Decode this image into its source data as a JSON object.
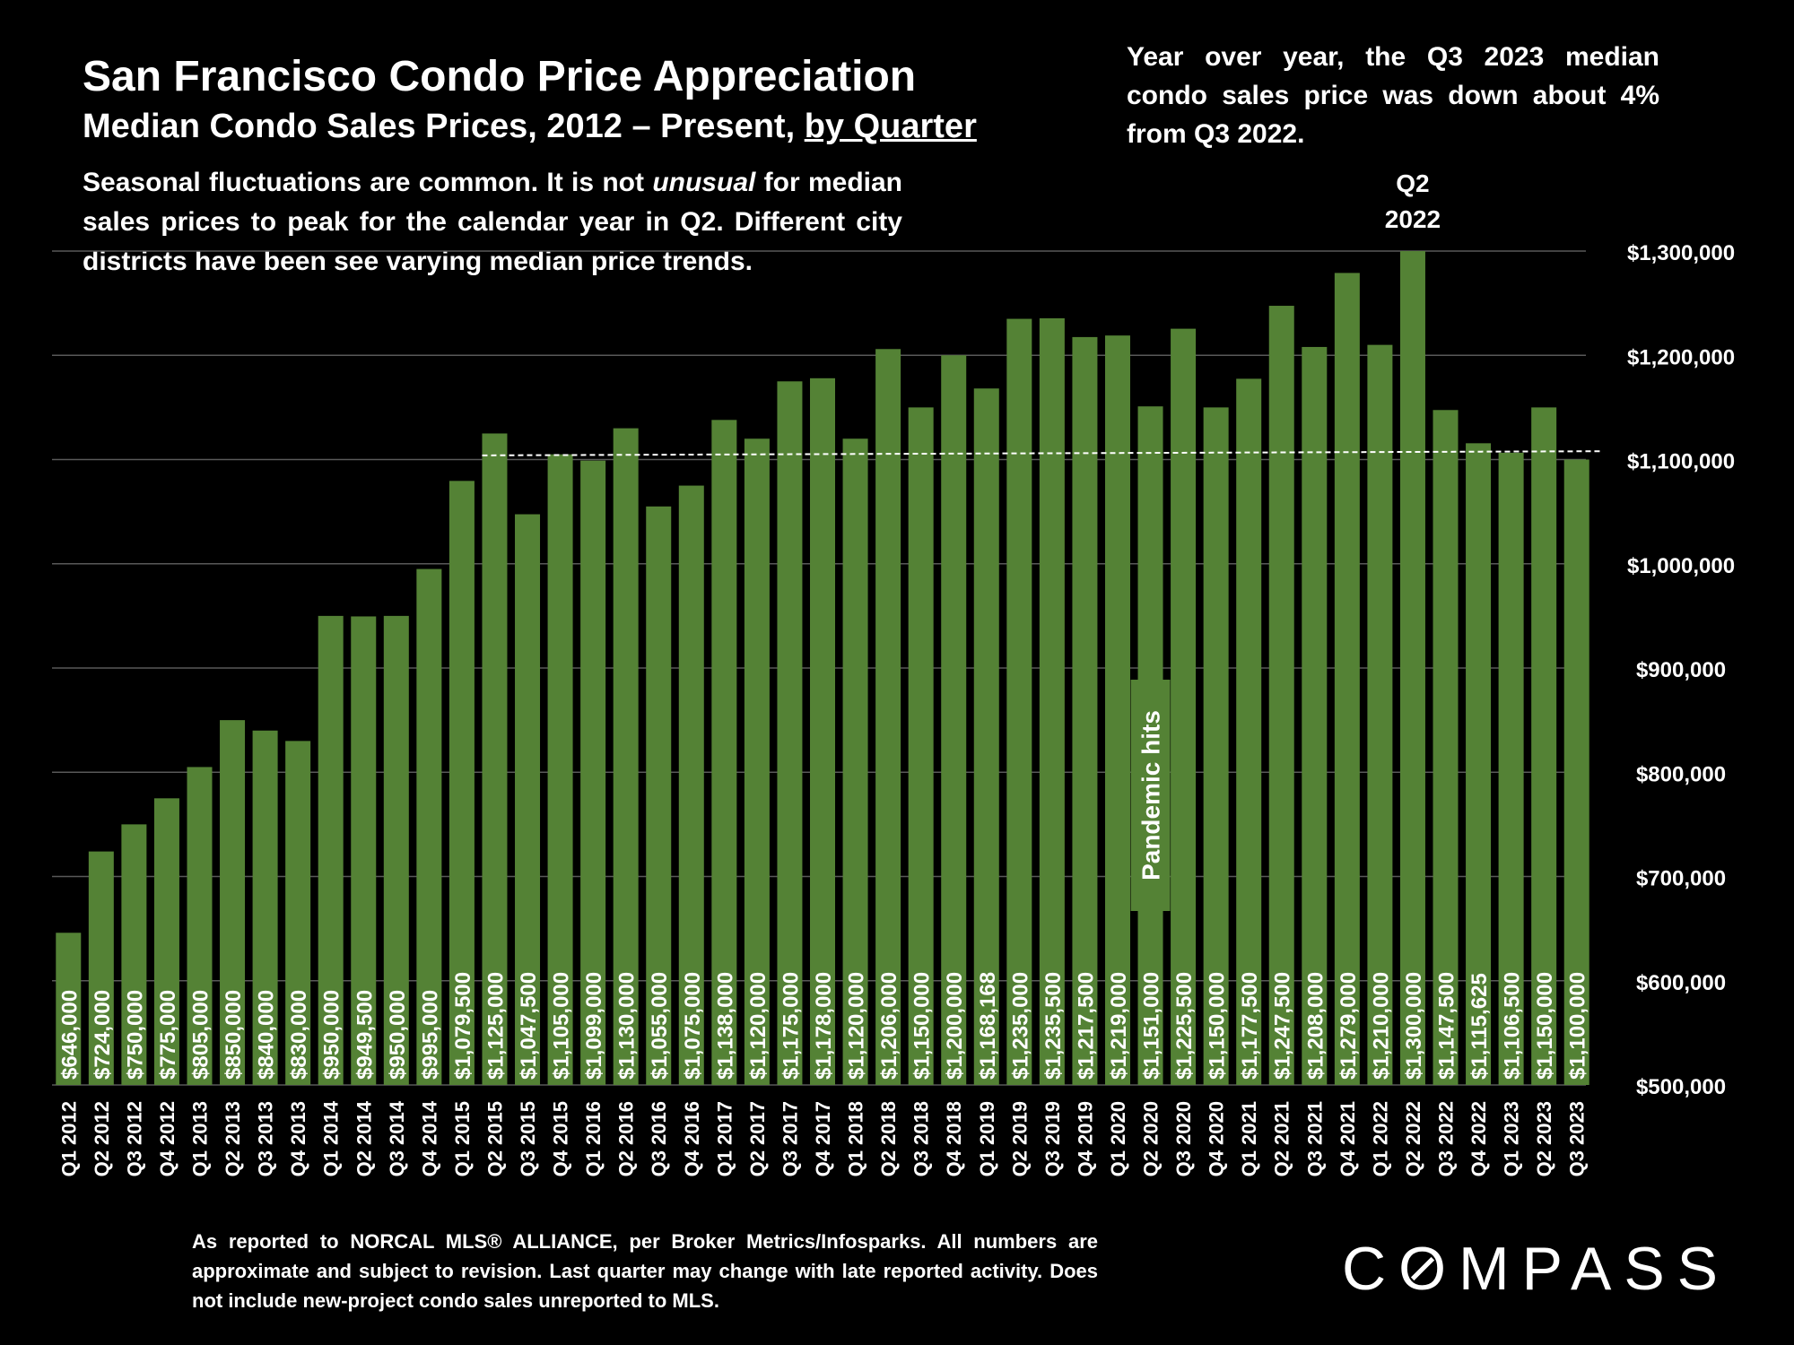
{
  "header": {
    "title": "San Francisco Condo Price Appreciation",
    "subtitle_main": "Median Condo Sales Prices, 2012 – Present, ",
    "subtitle_underlined": "by Quarter"
  },
  "notes": {
    "left_pre": "Seasonal fluctuations are common. It is not ",
    "left_em": "unusual",
    "left_post": " for median sales prices to peak for the calendar year in Q2. Different city districts have been see varying median price trends.",
    "right": "Year over year, the Q3 2023 median condo sales price was down about 4% from Q3 2022."
  },
  "footnote": "As reported to NORCAL MLS® ALLIANCE, per Broker Metrics/Infosparks. All numbers are approximate and subject to revision. Last quarter may change with late reported activity. Does not include new-project condo sales unreported to MLS.",
  "logo": {
    "pre": "C",
    "o": "O",
    "post": "MPASS"
  },
  "colors": {
    "background": "#000000",
    "bar": "#548235",
    "grid": "#595959",
    "text": "#ffffff"
  },
  "chart_data": {
    "type": "bar",
    "categories": [
      "Q1 2012",
      "Q2 2012",
      "Q3 2012",
      "Q4 2012",
      "Q1 2013",
      "Q2 2013",
      "Q3 2013",
      "Q4 2013",
      "Q1 2014",
      "Q2 2014",
      "Q3 2014",
      "Q4 2014",
      "Q1 2015",
      "Q2 2015",
      "Q3 2015",
      "Q4 2015",
      "Q1 2016",
      "Q2 2016",
      "Q3 2016",
      "Q4 2016",
      "Q1 2017",
      "Q2 2017",
      "Q3 2017",
      "Q4 2017",
      "Q1 2018",
      "Q2 2018",
      "Q3 2018",
      "Q4 2018",
      "Q1 2019",
      "Q2 2019",
      "Q3 2019",
      "Q4 2019",
      "Q1 2020",
      "Q2 2020",
      "Q3 2020",
      "Q4 2020",
      "Q1 2021",
      "Q2 2021",
      "Q3 2021",
      "Q4 2021",
      "Q1 2022",
      "Q2 2022",
      "Q3 2022",
      "Q4 2022",
      "Q1 2023",
      "Q2 2023",
      "Q3 2023"
    ],
    "values": [
      646000,
      724000,
      750000,
      775000,
      805000,
      850000,
      840000,
      830000,
      950000,
      949500,
      950000,
      995000,
      1079500,
      1125000,
      1047500,
      1105000,
      1099000,
      1130000,
      1055000,
      1075000,
      1138000,
      1120000,
      1175000,
      1178000,
      1120000,
      1206000,
      1150000,
      1200000,
      1168168,
      1235000,
      1235500,
      1217500,
      1219000,
      1151000,
      1225500,
      1150000,
      1177500,
      1247500,
      1208000,
      1279000,
      1210000,
      1300000,
      1147500,
      1115625,
      1106500,
      1150000,
      1100000
    ],
    "value_labels": [
      "$646,000",
      "$724,000",
      "$750,000",
      "$775,000",
      "$805,000",
      "$850,000",
      "$840,000",
      "$830,000",
      "$950,000",
      "$949,500",
      "$950,000",
      "$995,000",
      "$1,079,500",
      "$1,125,000",
      "$1,047,500",
      "$1,105,000",
      "$1,099,000",
      "$1,130,000",
      "$1,055,000",
      "$1,075,000",
      "$1,138,000",
      "$1,120,000",
      "$1,175,000",
      "$1,178,000",
      "$1,120,000",
      "$1,206,000",
      "$1,150,000",
      "$1,200,000",
      "$1,168,168",
      "$1,235,000",
      "$1,235,500",
      "$1,217,500",
      "$1,219,000",
      "$1,151,000",
      "$1,225,500",
      "$1,150,000",
      "$1,177,500",
      "$1,247,500",
      "$1,208,000",
      "$1,279,000",
      "$1,210,000",
      "$1,300,000",
      "$1,147,500",
      "$1,115,625",
      "$1,106,500",
      "$1,150,000",
      "$1,100,000"
    ],
    "ylim": [
      500000,
      1300000
    ],
    "y_ticks": [
      500000,
      600000,
      700000,
      800000,
      900000,
      1000000,
      1100000,
      1200000,
      1300000
    ],
    "y_tick_labels": [
      "$500,000",
      "$600,000",
      "$700,000",
      "$800,000",
      "$900,000",
      "$1,000,000",
      "$1,100,000",
      "$1,200,000",
      "$1,300,000"
    ],
    "y_axis_side": "right",
    "grid": true,
    "reference_line": {
      "style": "dashed",
      "from_category": "Q2 2015",
      "to_category": "Q3 2023",
      "start_value": 1104000,
      "end_value": 1108000
    },
    "annotations": [
      {
        "text_line1": "Q2",
        "text_line2": "2022",
        "category": "Q2 2022"
      },
      {
        "text": "Pandemic hits",
        "category": "Q2 2020"
      }
    ]
  }
}
